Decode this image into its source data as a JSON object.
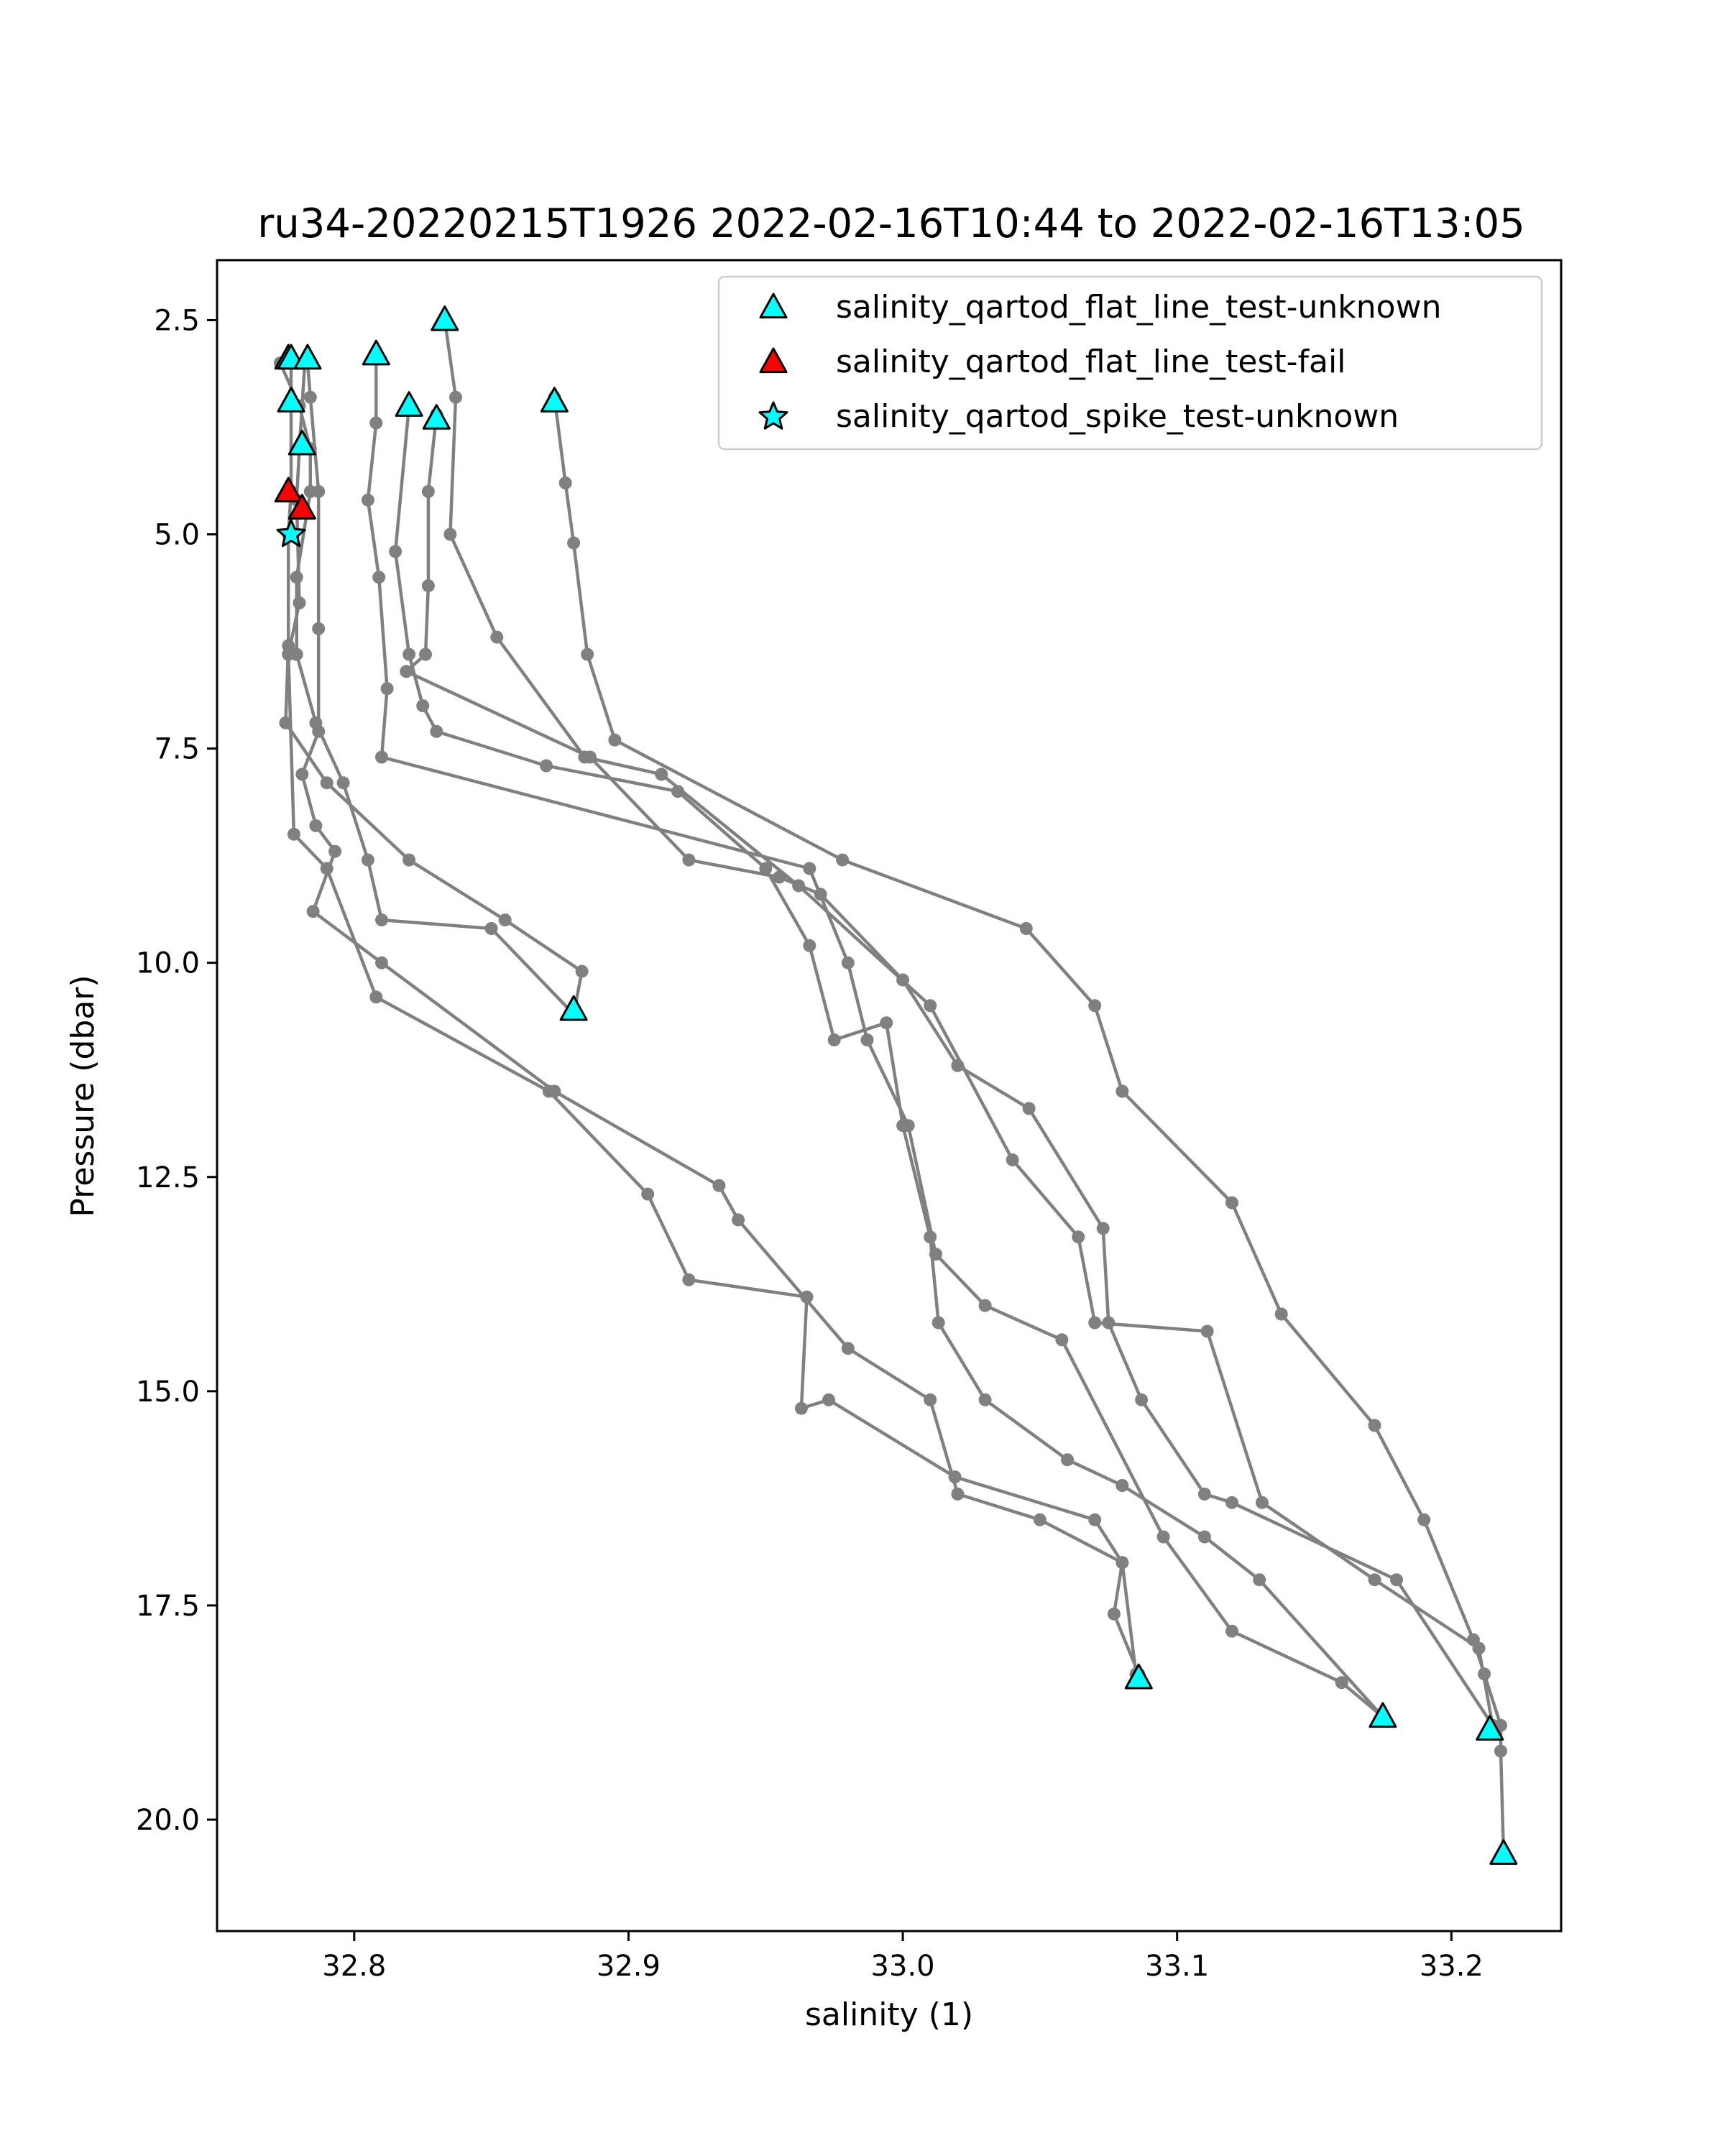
{
  "chart_data": {
    "type": "scatter",
    "title": "ru34-20220215T1926 2022-02-16T10:44 to 2022-02-16T13:05",
    "xlabel": "salinity (1)",
    "ylabel": "Pressure (dbar)",
    "xlim": [
      32.75,
      33.24
    ],
    "ylim": [
      21.3,
      1.8
    ],
    "y_inverted": true,
    "xticks": [
      "32.8",
      "32.9",
      "33.0",
      "33.1",
      "33.2"
    ],
    "yticks": [
      "2.5",
      "5.0",
      "7.5",
      "10.0",
      "12.5",
      "15.0",
      "17.5",
      "20.0"
    ],
    "grid": false,
    "legend_position": "upper-right",
    "profile_color": "#808080",
    "profiles": [
      {
        "x": [
          32.773,
          32.78,
          32.784,
          32.784,
          32.779,
          32.779,
          32.786,
          32.796,
          32.805,
          32.81,
          32.85,
          32.88
        ],
        "y": [
          3.0,
          3.5,
          4.0,
          4.5,
          5.5,
          6.4,
          7.2,
          7.9,
          8.8,
          9.5,
          9.6,
          10.6
        ]
      },
      {
        "x": [
          32.777,
          32.777,
          32.776,
          32.776,
          32.775,
          32.79,
          32.82,
          32.855,
          32.883,
          32.88
        ],
        "y": [
          3.0,
          4.5,
          5.0,
          6.3,
          7.2,
          7.9,
          8.8,
          9.5,
          10.1,
          10.6
        ]
      },
      {
        "x": [
          32.782,
          32.78,
          32.779,
          32.78,
          32.776,
          32.778,
          32.79,
          32.808,
          32.871,
          32.907,
          32.922,
          32.965,
          32.963,
          32.973,
          33.019,
          33.07,
          33.08,
          33.077,
          33.086
        ],
        "y": [
          3.0,
          4.0,
          4.6,
          5.8,
          6.4,
          8.5,
          8.9,
          10.4,
          11.5,
          12.7,
          13.7,
          13.9,
          15.2,
          15.1,
          16.0,
          16.5,
          17.0,
          17.6,
          18.3
        ]
      },
      {
        "x": [
          32.783,
          32.784,
          32.787,
          32.787,
          32.787,
          32.781,
          32.786,
          32.793,
          32.785,
          32.81,
          32.873,
          32.933,
          32.94,
          32.98,
          33.01,
          33.02,
          33.05,
          33.08,
          33.085
        ],
        "y": [
          3.0,
          3.4,
          4.5,
          6.1,
          7.3,
          7.8,
          8.4,
          8.7,
          9.4,
          10.0,
          11.5,
          12.6,
          13.0,
          14.5,
          15.1,
          16.2,
          16.5,
          17.0,
          18.3
        ]
      },
      {
        "x": [
          32.808,
          32.808,
          32.805,
          32.809,
          32.812,
          32.81,
          32.966,
          32.98,
          32.987,
          33.002,
          33.012,
          33.03,
          33.058,
          33.095,
          33.12,
          33.16,
          33.175
        ],
        "y": [
          2.9,
          3.7,
          4.6,
          5.5,
          6.8,
          7.6,
          8.9,
          10.0,
          10.9,
          11.9,
          13.4,
          14.0,
          14.4,
          16.7,
          17.8,
          18.4,
          18.8
        ]
      },
      {
        "x": [
          32.82,
          32.815,
          32.82,
          32.825,
          32.83,
          32.87,
          32.918,
          32.95,
          32.966,
          32.975,
          32.994,
          33.0,
          33.01,
          33.013,
          33.03,
          33.06,
          33.08,
          33.11,
          33.13,
          33.175
        ],
        "y": [
          3.5,
          5.2,
          6.4,
          7.0,
          7.3,
          7.7,
          8.0,
          8.9,
          9.8,
          10.9,
          10.7,
          11.9,
          13.2,
          14.2,
          15.1,
          15.8,
          16.1,
          16.7,
          17.2,
          18.8
        ]
      },
      {
        "x": [
          32.83,
          32.827,
          32.827,
          32.826,
          32.819,
          32.886,
          32.922,
          32.955,
          32.97,
          33.0,
          33.02,
          33.046,
          33.073,
          33.075,
          33.087,
          33.11,
          33.12,
          33.18,
          33.215
        ],
        "y": [
          3.6,
          4.5,
          5.6,
          6.4,
          6.6,
          7.6,
          8.8,
          9.0,
          9.2,
          10.2,
          11.2,
          11.7,
          13.1,
          14.2,
          15.1,
          16.2,
          16.3,
          17.2,
          18.9
        ]
      },
      {
        "x": [
          32.833,
          32.837,
          32.835,
          32.852,
          32.884,
          32.912,
          32.962,
          33.01,
          33.04,
          33.064,
          33.07,
          33.111,
          33.131,
          33.172,
          33.21,
          33.215
        ],
        "y": [
          2.5,
          3.4,
          5.0,
          6.2,
          7.6,
          7.8,
          9.1,
          10.5,
          12.3,
          13.2,
          14.2,
          14.3,
          16.3,
          17.2,
          18.0,
          18.9
        ]
      },
      {
        "x": [
          32.873,
          32.877,
          32.88,
          32.885,
          32.895,
          32.978,
          33.045,
          33.07,
          33.08,
          33.12,
          33.138,
          33.172,
          33.19,
          33.208,
          33.212,
          33.218,
          33.218,
          33.219
        ],
        "y": [
          3.4,
          4.4,
          5.1,
          6.4,
          7.4,
          8.8,
          9.6,
          10.5,
          11.5,
          12.8,
          14.1,
          15.4,
          16.5,
          17.9,
          18.3,
          18.9,
          19.2,
          20.4
        ]
      }
    ],
    "flagged_points": [
      {
        "series": 0,
        "points": [
          [
            32.833,
            2.5
          ],
          [
            32.776,
            2.95
          ],
          [
            32.777,
            2.95
          ],
          [
            32.783,
            2.95
          ],
          [
            32.808,
            2.9
          ],
          [
            32.777,
            3.45
          ],
          [
            32.82,
            3.5
          ],
          [
            32.83,
            3.65
          ],
          [
            32.873,
            3.45
          ],
          [
            32.781,
            3.95
          ],
          [
            32.88,
            10.55
          ],
          [
            33.086,
            18.35
          ],
          [
            33.175,
            18.8
          ],
          [
            33.214,
            18.95
          ],
          [
            33.219,
            20.4
          ]
        ]
      },
      {
        "series": 1,
        "points": [
          [
            32.776,
            4.5
          ],
          [
            32.781,
            4.7
          ]
        ]
      },
      {
        "series": 2,
        "points": [
          [
            32.777,
            5.0
          ]
        ]
      }
    ],
    "series": [
      {
        "name": "salinity_qartod_flat_line_test-unknown",
        "marker": "triangle",
        "color": "#00ffff"
      },
      {
        "name": "salinity_qartod_flat_line_test-fail",
        "marker": "triangle",
        "color": "#ff0000"
      },
      {
        "name": "salinity_qartod_spike_test-unknown",
        "marker": "star",
        "color": "#00ffff"
      }
    ]
  }
}
